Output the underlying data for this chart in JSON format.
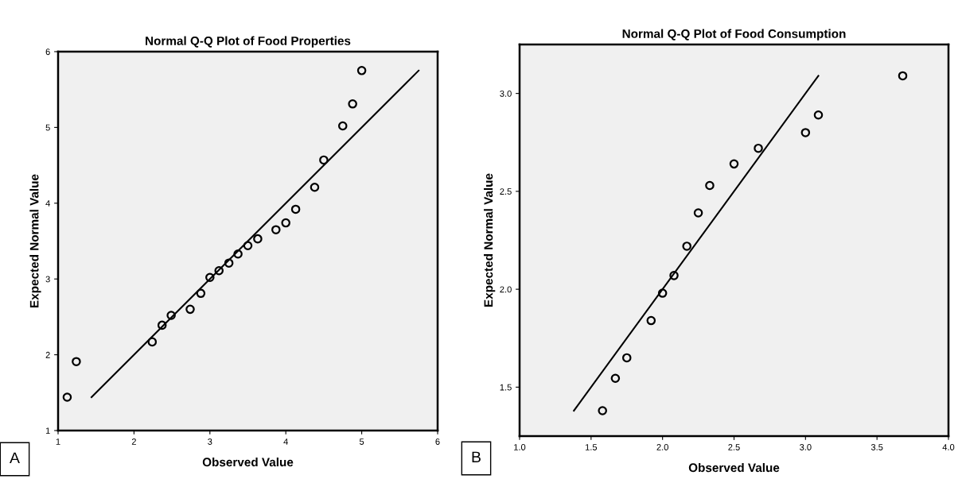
{
  "chart_data": [
    {
      "type": "scatter",
      "title": "Normal Q-Q Plot of Food Properties",
      "xlabel": "Observed Value",
      "ylabel": "Expected Normal Value",
      "xlim": [
        1,
        6
      ],
      "ylim": [
        1,
        6
      ],
      "xticks": [
        1,
        2,
        3,
        4,
        5,
        6
      ],
      "yticks": [
        1,
        2,
        3,
        4,
        5,
        6
      ],
      "grid": false,
      "annotations": [
        "A"
      ],
      "series": [
        {
          "color": "#000000",
          "marker": "circle",
          "x": [
            1.12,
            1.24,
            2.24,
            2.37,
            2.49,
            2.74,
            2.88,
            3.0,
            3.12,
            3.25,
            3.37,
            3.5,
            3.63,
            3.87,
            4.0,
            4.13,
            4.38,
            4.5,
            4.75,
            4.88,
            5.0
          ],
          "values": [
            1.44,
            1.91,
            2.17,
            2.39,
            2.52,
            2.6,
            2.81,
            3.02,
            3.11,
            3.21,
            3.33,
            3.44,
            3.53,
            3.65,
            3.74,
            3.92,
            4.21,
            4.57,
            5.02,
            5.31,
            5.75
          ]
        },
        {
          "type": "line",
          "color": "#000000",
          "x": [
            1.44,
            5.75
          ],
          "values": [
            1.44,
            5.75
          ]
        }
      ]
    },
    {
      "type": "scatter",
      "title": "Normal Q-Q Plot of Food Consumption",
      "xlabel": "Observed Value",
      "ylabel": "Expected Normal Value",
      "xlim": [
        1.0,
        4.0
      ],
      "ylim": [
        1.25,
        3.25
      ],
      "xticks": [
        {
          "value": 1.0,
          "label": "1.0"
        },
        {
          "value": 1.5,
          "label": "1.5"
        },
        {
          "value": 2.0,
          "label": "2.0"
        },
        {
          "value": 2.5,
          "label": "2.5"
        },
        {
          "value": 3.0,
          "label": "3.0"
        },
        {
          "value": 3.5,
          "label": "3.5"
        },
        {
          "value": 4.0,
          "label": "4.0"
        }
      ],
      "yticks": [
        {
          "value": 1.5,
          "label": "1.5"
        },
        {
          "value": 2.0,
          "label": "2.0"
        },
        {
          "value": 2.5,
          "label": "2.5"
        },
        {
          "value": 3.0,
          "label": "3.0"
        }
      ],
      "grid": false,
      "annotations": [
        "B"
      ],
      "series": [
        {
          "color": "#000000",
          "marker": "circle",
          "x": [
            1.58,
            1.67,
            1.75,
            1.92,
            2.0,
            2.08,
            2.17,
            2.25,
            2.33,
            2.5,
            2.67,
            3.0,
            3.09,
            3.68
          ],
          "values": [
            1.38,
            1.545,
            1.65,
            1.84,
            1.98,
            2.07,
            2.22,
            2.39,
            2.53,
            2.64,
            2.72,
            2.8,
            2.89,
            3.09
          ]
        },
        {
          "type": "line",
          "color": "#000000",
          "x": [
            1.38,
            3.09
          ],
          "values": [
            1.38,
            3.09
          ]
        }
      ]
    }
  ]
}
